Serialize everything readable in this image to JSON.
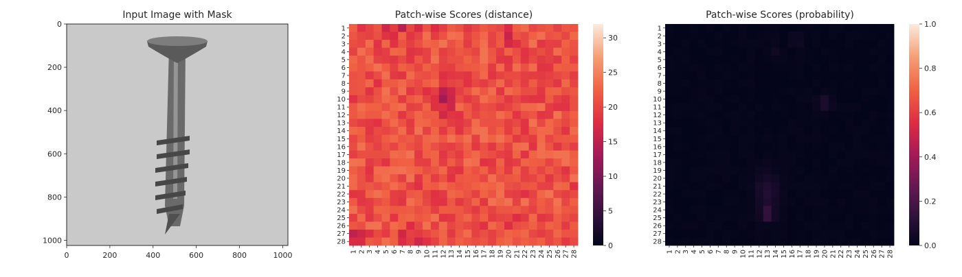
{
  "chart_data": [
    {
      "type": "image",
      "title": "Input Image with Mask",
      "xlim": [
        0,
        1024
      ],
      "ylim": [
        1024,
        0
      ],
      "xticks": [
        "0",
        "200",
        "400",
        "600",
        "800",
        "1000"
      ],
      "yticks": [
        "0",
        "200",
        "400",
        "600",
        "800",
        "1000"
      ],
      "colors": {
        "background": "#c8c8c8",
        "screw": "#5e5e5e"
      }
    },
    {
      "type": "heatmap",
      "title": "Patch-wise Scores (distance)",
      "rows": 28,
      "cols": 28,
      "x_tick_labels": [
        "1",
        "2",
        "3",
        "4",
        "5",
        "6",
        "7",
        "8",
        "9",
        "10",
        "11",
        "12",
        "13",
        "14",
        "15",
        "16",
        "17",
        "18",
        "19",
        "20",
        "21",
        "22",
        "23",
        "24",
        "25",
        "26",
        "27",
        "28"
      ],
      "y_tick_labels": [
        "1",
        "2",
        "3",
        "4",
        "5",
        "6",
        "7",
        "8",
        "9",
        "10",
        "11",
        "12",
        "13",
        "14",
        "15",
        "16",
        "17",
        "18",
        "19",
        "20",
        "21",
        "22",
        "23",
        "24",
        "25",
        "26",
        "27",
        "28"
      ],
      "colorbar": {
        "min": 0,
        "max": 32,
        "ticks": [
          "0",
          "5",
          "10",
          "15",
          "20",
          "25",
          "30"
        ]
      },
      "colormap": "rocket",
      "base_value": 21,
      "hotspots": [
        {
          "col": 13.5,
          "row": 20.0,
          "value": 31,
          "radius_col": 1.4,
          "radius_row": 5.0
        },
        {
          "col": 19.5,
          "row": 10.3,
          "value": 32,
          "radius_col": 1.2,
          "radius_row": 0.8
        },
        {
          "col": 24.5,
          "row": 24.5,
          "value": 27,
          "radius_col": 2.5,
          "radius_row": 1.8
        },
        {
          "col": 24.0,
          "row": 6.0,
          "value": 26,
          "radius_col": 2.5,
          "radius_row": 2.0
        },
        {
          "col": 15.5,
          "row": 2.5,
          "value": 27,
          "radius_col": 2.5,
          "radius_row": 1.2
        },
        {
          "col": 22.0,
          "row": 11.0,
          "value": 26,
          "radius_col": 3.0,
          "radius_row": 1.8
        }
      ],
      "coldspots": [
        {
          "col": 12.0,
          "row": 10.0,
          "value": 15,
          "radius_col": 1.2,
          "radius_row": 1.8
        },
        {
          "col": 7.0,
          "row": 1.0,
          "value": 17,
          "radius_col": 3.0,
          "radius_row": 0.8
        },
        {
          "col": 1.0,
          "row": 28.0,
          "value": 15,
          "radius_col": 1.5,
          "radius_row": 1.5
        },
        {
          "col": 8.0,
          "row": 27.5,
          "value": 16,
          "radius_col": 1.5,
          "radius_row": 1.0
        },
        {
          "col": 20.0,
          "row": 2.0,
          "value": 17,
          "radius_col": 1.0,
          "radius_row": 1.0
        },
        {
          "col": 20.0,
          "row": 25.5,
          "value": 17,
          "radius_col": 1.0,
          "radius_row": 1.0
        }
      ]
    },
    {
      "type": "heatmap",
      "title": "Patch-wise Scores (probability)",
      "rows": 28,
      "cols": 28,
      "x_tick_labels": [
        "1",
        "2",
        "3",
        "4",
        "5",
        "6",
        "7",
        "8",
        "9",
        "10",
        "11",
        "12",
        "13",
        "14",
        "15",
        "16",
        "17",
        "18",
        "19",
        "20",
        "21",
        "22",
        "23",
        "24",
        "25",
        "26",
        "27",
        "28"
      ],
      "y_tick_labels": [
        "1",
        "2",
        "3",
        "4",
        "5",
        "6",
        "7",
        "8",
        "9",
        "10",
        "11",
        "12",
        "13",
        "14",
        "15",
        "16",
        "17",
        "18",
        "19",
        "20",
        "21",
        "22",
        "23",
        "24",
        "25",
        "26",
        "27",
        "28"
      ],
      "colorbar": {
        "min": 0.0,
        "max": 1.0,
        "ticks": [
          "0.0",
          "0.2",
          "0.4",
          "0.6",
          "0.8",
          "1.0"
        ]
      },
      "colormap": "rocket",
      "base_value": 0.005,
      "hotspots": [
        {
          "col": 20.0,
          "row": 10.5,
          "value": 0.1,
          "radius_col": 0.9,
          "radius_row": 0.9
        },
        {
          "col": 13.0,
          "row": 24.5,
          "value": 0.18,
          "radius_col": 0.9,
          "radius_row": 0.9
        },
        {
          "col": 13.0,
          "row": 22.0,
          "value": 0.09,
          "radius_col": 1.5,
          "radius_row": 3.0
        },
        {
          "col": 16.5,
          "row": 2.5,
          "value": 0.05,
          "radius_col": 0.9,
          "radius_row": 0.8
        },
        {
          "col": 14.0,
          "row": 4.0,
          "value": 0.04,
          "radius_col": 0.8,
          "radius_row": 0.8
        }
      ],
      "coldspots": []
    }
  ]
}
